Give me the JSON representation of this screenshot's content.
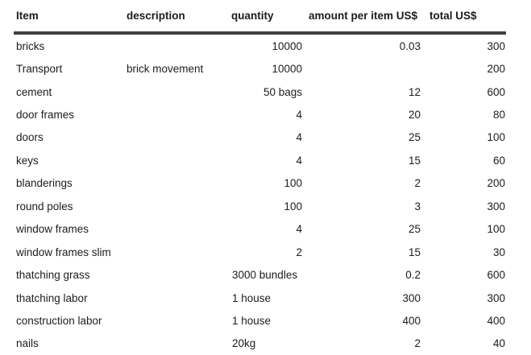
{
  "page": {
    "background_color": "#ffffff",
    "text_color": "#1c1c1c",
    "header_rule_color": "#3f3f3f"
  },
  "table": {
    "columns": [
      {
        "label": "Item"
      },
      {
        "label": "description"
      },
      {
        "label": "quantity"
      },
      {
        "label": "amount per item US$"
      },
      {
        "label": "total US$"
      }
    ],
    "rows": [
      {
        "item": "bricks",
        "description": "",
        "quantity": "10000",
        "quantity_align": "right",
        "amount_per_item": "0.03",
        "total": "300"
      },
      {
        "item": "Transport",
        "description": "brick movement",
        "quantity": "10000",
        "quantity_align": "right",
        "amount_per_item": "",
        "total": "200"
      },
      {
        "item": "cement",
        "description": "",
        "quantity": "50 bags",
        "quantity_align": "right",
        "amount_per_item": "12",
        "total": "600"
      },
      {
        "item": "door frames",
        "description": "",
        "quantity": "4",
        "quantity_align": "right",
        "amount_per_item": "20",
        "total": "80"
      },
      {
        "item": "doors",
        "description": "",
        "quantity": "4",
        "quantity_align": "right",
        "amount_per_item": "25",
        "total": "100"
      },
      {
        "item": "keys",
        "description": "",
        "quantity": "4",
        "quantity_align": "right",
        "amount_per_item": "15",
        "total": "60"
      },
      {
        "item": "blanderings",
        "description": "",
        "quantity": "100",
        "quantity_align": "right",
        "amount_per_item": "2",
        "total": "200"
      },
      {
        "item": "round poles",
        "description": "",
        "quantity": "100",
        "quantity_align": "right",
        "amount_per_item": "3",
        "total": "300"
      },
      {
        "item": "window frames",
        "description": "",
        "quantity": "4",
        "quantity_align": "right",
        "amount_per_item": "25",
        "total": "100"
      },
      {
        "item": "window frames slim",
        "description": "",
        "quantity": "2",
        "quantity_align": "right",
        "amount_per_item": "15",
        "total": "30"
      },
      {
        "item": "thatching grass",
        "description": "",
        "quantity": "3000 bundles",
        "quantity_align": "left",
        "amount_per_item": "0.2",
        "total": "600"
      },
      {
        "item": "thatching labor",
        "description": "",
        "quantity": "1 house",
        "quantity_align": "left",
        "amount_per_item": "300",
        "total": "300"
      },
      {
        "item": "construction labor",
        "description": "",
        "quantity": "1 house",
        "quantity_align": "left",
        "amount_per_item": "400",
        "total": "400"
      },
      {
        "item": "nails",
        "description": "",
        "quantity": "20kg",
        "quantity_align": "left",
        "amount_per_item": "2",
        "total": "40"
      }
    ]
  }
}
